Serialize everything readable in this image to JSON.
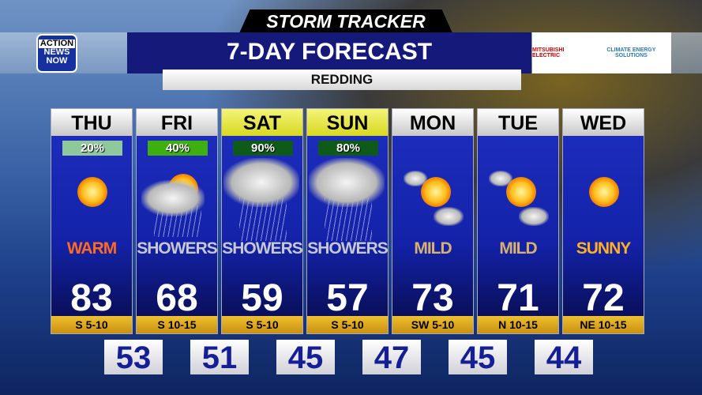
{
  "header": {
    "banner": "STORM TRACKER",
    "title": "7-DAY FORECAST",
    "location": "REDDING",
    "logo": [
      "ACTION",
      "NEWS",
      "NOW"
    ],
    "sponsors": [
      "MITSUBISHI ELECTRIC",
      "CLIMATE ENERGY SOLUTIONS"
    ]
  },
  "colors": {
    "title_bg": "#151a7a",
    "weekend_header": "#e8e840",
    "wind_bar": "#e0a820",
    "low_text": "#151f95"
  },
  "days": [
    {
      "day": "THU",
      "precip": "20%",
      "precip_color": "#8fc89a",
      "icon": "sunny-icon",
      "condition": "WARM",
      "cond_color": "#ff6a20",
      "high": "83",
      "wind": "S 5-10",
      "low": "53",
      "weekend": false
    },
    {
      "day": "FRI",
      "precip": "40%",
      "precip_color": "#3fae10",
      "icon": "partly-cloudy-showers-icon",
      "condition": "SHOWERS",
      "cond_color": "#c8c8d0",
      "high": "68",
      "wind": "S 10-15",
      "low": "51",
      "weekend": false
    },
    {
      "day": "SAT",
      "precip": "90%",
      "precip_color": "#0e5a18",
      "icon": "rain-cloud-icon",
      "condition": "SHOWERS",
      "cond_color": "#c8c8d0",
      "high": "59",
      "wind": "S 5-10",
      "low": "45",
      "weekend": true
    },
    {
      "day": "SUN",
      "precip": "80%",
      "precip_color": "#0e5a18",
      "icon": "rain-cloud-icon",
      "condition": "SHOWERS",
      "cond_color": "#c8c8d0",
      "high": "57",
      "wind": "S 5-10",
      "low": "47",
      "weekend": true
    },
    {
      "day": "MON",
      "precip": "",
      "precip_color": "",
      "icon": "mostly-sunny-icon",
      "condition": "MILD",
      "cond_color": "#d8b070",
      "high": "73",
      "wind": "SW 5-10",
      "low": "45",
      "weekend": false
    },
    {
      "day": "TUE",
      "precip": "",
      "precip_color": "",
      "icon": "mostly-sunny-icon",
      "condition": "MILD",
      "cond_color": "#d8b070",
      "high": "71",
      "wind": "N 10-15",
      "low": "44",
      "weekend": false
    },
    {
      "day": "WED",
      "precip": "",
      "precip_color": "",
      "icon": "sunny-icon",
      "condition": "SUNNY",
      "cond_color": "#ffb020",
      "high": "72",
      "wind": "NE 10-15",
      "low": "",
      "weekend": false
    }
  ]
}
